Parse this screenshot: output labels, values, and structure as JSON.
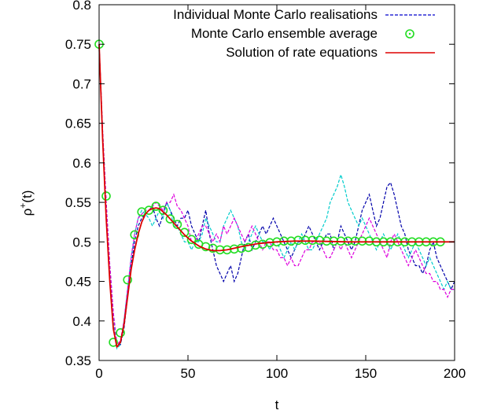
{
  "chart_data": {
    "type": "line",
    "xlabel": "t",
    "ylabel_base": "ρ",
    "ylabel_sup": "+",
    "ylabel_tail": "(t)",
    "xlim": [
      0,
      200
    ],
    "ylim": [
      0.35,
      0.8
    ],
    "xticks": [
      0,
      50,
      100,
      150,
      200
    ],
    "xtick_labels": [
      "0",
      "50",
      "100",
      "150",
      "200"
    ],
    "yticks": [
      0.35,
      0.4,
      0.45,
      0.5,
      0.55,
      0.6,
      0.65,
      0.7,
      0.75,
      0.8
    ],
    "ytick_labels": [
      "0.35",
      "0.4",
      "0.45",
      "0.5",
      "0.55",
      "0.6",
      "0.65",
      "0.7",
      "0.75",
      "0.8"
    ],
    "grid": false,
    "legend_position": "top-right",
    "legend": [
      {
        "label": "Individual Monte Carlo realisations",
        "style": "dashed",
        "color": "#0000cc"
      },
      {
        "label": "Monte Carlo ensemble average",
        "style": "circle",
        "color": "#22dd22"
      },
      {
        "label": "Solution of rate equations",
        "style": "solid",
        "color": "#dd0000"
      }
    ],
    "series": [
      {
        "label_ref": "Individual Monte Carlo realisations",
        "color": "#0000aa",
        "x": [
          0,
          2,
          4,
          6,
          8,
          10,
          12,
          14,
          16,
          18,
          20,
          22,
          24,
          26,
          28,
          30,
          32,
          34,
          36,
          38,
          40,
          42,
          44,
          46,
          48,
          50,
          52,
          54,
          56,
          58,
          60,
          62,
          64,
          66,
          68,
          70,
          72,
          74,
          76,
          78,
          80,
          82,
          84,
          86,
          88,
          90,
          92,
          94,
          96,
          98,
          100,
          102,
          104,
          106,
          108,
          110,
          112,
          114,
          116,
          118,
          120,
          122,
          124,
          126,
          128,
          130,
          132,
          134,
          136,
          138,
          140,
          142,
          144,
          146,
          148,
          150,
          152,
          154,
          156,
          158,
          160,
          162,
          164,
          166,
          168,
          170,
          172,
          174,
          176,
          178,
          180,
          182,
          184,
          186,
          188,
          190,
          192,
          194,
          196,
          198,
          200
        ],
        "y": [
          0.75,
          0.64,
          0.55,
          0.47,
          0.41,
          0.37,
          0.37,
          0.39,
          0.43,
          0.47,
          0.5,
          0.52,
          0.53,
          0.535,
          0.54,
          0.545,
          0.53,
          0.52,
          0.535,
          0.55,
          0.54,
          0.53,
          0.52,
          0.53,
          0.53,
          0.54,
          0.52,
          0.51,
          0.5,
          0.52,
          0.54,
          0.51,
          0.49,
          0.47,
          0.46,
          0.45,
          0.46,
          0.47,
          0.45,
          0.46,
          0.48,
          0.5,
          0.51,
          0.49,
          0.5,
          0.51,
          0.52,
          0.51,
          0.52,
          0.53,
          0.52,
          0.51,
          0.5,
          0.49,
          0.48,
          0.49,
          0.5,
          0.5,
          0.51,
          0.52,
          0.51,
          0.5,
          0.49,
          0.5,
          0.51,
          0.51,
          0.49,
          0.5,
          0.52,
          0.51,
          0.5,
          0.49,
          0.5,
          0.52,
          0.54,
          0.55,
          0.56,
          0.54,
          0.52,
          0.53,
          0.55,
          0.57,
          0.575,
          0.56,
          0.54,
          0.52,
          0.51,
          0.49,
          0.48,
          0.47,
          0.47,
          0.46,
          0.47,
          0.49,
          0.5,
          0.48,
          0.47,
          0.46,
          0.45,
          0.44,
          0.45
        ]
      },
      {
        "label_ref": "Individual Monte Carlo realisations",
        "color": "#00cccc",
        "x": [
          0,
          2,
          4,
          6,
          8,
          10,
          12,
          14,
          16,
          18,
          20,
          22,
          24,
          26,
          28,
          30,
          32,
          34,
          36,
          38,
          40,
          42,
          44,
          46,
          48,
          50,
          52,
          54,
          56,
          58,
          60,
          62,
          64,
          66,
          68,
          70,
          72,
          74,
          76,
          78,
          80,
          82,
          84,
          86,
          88,
          90,
          92,
          94,
          96,
          98,
          100,
          102,
          104,
          106,
          108,
          110,
          112,
          114,
          116,
          118,
          120,
          122,
          124,
          126,
          128,
          130,
          132,
          134,
          136,
          138,
          140,
          142,
          144,
          146,
          148,
          150,
          152,
          154,
          156,
          158,
          160,
          162,
          164,
          166,
          168,
          170,
          172,
          174,
          176,
          178,
          180,
          182,
          184,
          186,
          188,
          190,
          192,
          194,
          196,
          198,
          200
        ],
        "y": [
          0.75,
          0.63,
          0.54,
          0.46,
          0.4,
          0.365,
          0.37,
          0.4,
          0.44,
          0.48,
          0.51,
          0.53,
          0.54,
          0.535,
          0.53,
          0.52,
          0.53,
          0.54,
          0.53,
          0.55,
          0.54,
          0.52,
          0.52,
          0.51,
          0.5,
          0.5,
          0.49,
          0.5,
          0.5,
          0.51,
          0.53,
          0.52,
          0.51,
          0.5,
          0.5,
          0.52,
          0.53,
          0.54,
          0.53,
          0.52,
          0.5,
          0.49,
          0.5,
          0.51,
          0.52,
          0.51,
          0.5,
          0.5,
          0.49,
          0.5,
          0.5,
          0.49,
          0.48,
          0.49,
          0.5,
          0.49,
          0.5,
          0.51,
          0.5,
          0.49,
          0.49,
          0.5,
          0.51,
          0.52,
          0.53,
          0.55,
          0.56,
          0.57,
          0.585,
          0.57,
          0.55,
          0.54,
          0.53,
          0.52,
          0.53,
          0.52,
          0.51,
          0.5,
          0.49,
          0.5,
          0.51,
          0.5,
          0.49,
          0.5,
          0.51,
          0.5,
          0.49,
          0.48,
          0.49,
          0.5,
          0.49,
          0.48,
          0.47,
          0.48,
          0.47,
          0.46,
          0.45,
          0.44,
          0.45,
          0.44,
          0.44
        ]
      },
      {
        "label_ref": "Individual Monte Carlo realisations",
        "color": "#dd00dd",
        "x": [
          0,
          2,
          4,
          6,
          8,
          10,
          12,
          14,
          16,
          18,
          20,
          22,
          24,
          26,
          28,
          30,
          32,
          34,
          36,
          38,
          40,
          42,
          44,
          46,
          48,
          50,
          52,
          54,
          56,
          58,
          60,
          62,
          64,
          66,
          68,
          70,
          72,
          74,
          76,
          78,
          80,
          82,
          84,
          86,
          88,
          90,
          92,
          94,
          96,
          98,
          100,
          102,
          104,
          106,
          108,
          110,
          112,
          114,
          116,
          118,
          120,
          122,
          124,
          126,
          128,
          130,
          132,
          134,
          136,
          138,
          140,
          142,
          144,
          146,
          148,
          150,
          152,
          154,
          156,
          158,
          160,
          162,
          164,
          166,
          168,
          170,
          172,
          174,
          176,
          178,
          180,
          182,
          184,
          186,
          188,
          190,
          192,
          194,
          196,
          198,
          200
        ],
        "y": [
          0.75,
          0.64,
          0.55,
          0.47,
          0.41,
          0.37,
          0.375,
          0.4,
          0.44,
          0.48,
          0.51,
          0.53,
          0.535,
          0.54,
          0.54,
          0.545,
          0.55,
          0.545,
          0.54,
          0.55,
          0.55,
          0.56,
          0.545,
          0.54,
          0.53,
          0.52,
          0.5,
          0.5,
          0.51,
          0.52,
          0.52,
          0.51,
          0.5,
          0.51,
          0.5,
          0.52,
          0.51,
          0.52,
          0.53,
          0.52,
          0.51,
          0.5,
          0.51,
          0.52,
          0.51,
          0.5,
          0.49,
          0.5,
          0.5,
          0.49,
          0.49,
          0.48,
          0.48,
          0.47,
          0.48,
          0.47,
          0.47,
          0.48,
          0.49,
          0.49,
          0.5,
          0.5,
          0.5,
          0.49,
          0.48,
          0.48,
          0.49,
          0.5,
          0.49,
          0.5,
          0.49,
          0.48,
          0.49,
          0.5,
          0.51,
          0.52,
          0.53,
          0.52,
          0.51,
          0.5,
          0.49,
          0.48,
          0.5,
          0.51,
          0.5,
          0.49,
          0.48,
          0.47,
          0.48,
          0.49,
          0.48,
          0.47,
          0.46,
          0.46,
          0.45,
          0.45,
          0.44,
          0.44,
          0.43,
          0.44,
          0.44
        ]
      }
    ],
    "ensemble_average": {
      "label_ref": "Monte Carlo ensemble average",
      "color": "#22dd22",
      "x": [
        0,
        4,
        8,
        12,
        16,
        20,
        24,
        28,
        32,
        36,
        40,
        44,
        48,
        52,
        56,
        60,
        64,
        68,
        72,
        76,
        80,
        84,
        88,
        92,
        96,
        100,
        104,
        108,
        112,
        116,
        120,
        124,
        128,
        132,
        136,
        140,
        144,
        148,
        152,
        156,
        160,
        164,
        168,
        172,
        176,
        180,
        184,
        188,
        192
      ],
      "y": [
        0.75,
        0.558,
        0.373,
        0.385,
        0.452,
        0.509,
        0.538,
        0.54,
        0.545,
        0.54,
        0.529,
        0.522,
        0.512,
        0.503,
        0.497,
        0.494,
        0.492,
        0.49,
        0.49,
        0.491,
        0.492,
        0.493,
        0.496,
        0.497,
        0.499,
        0.5,
        0.501,
        0.501,
        0.502,
        0.502,
        0.502,
        0.502,
        0.501,
        0.501,
        0.501,
        0.501,
        0.501,
        0.501,
        0.501,
        0.5,
        0.5,
        0.5,
        0.5,
        0.5,
        0.5,
        0.5,
        0.5,
        0.5,
        0.5
      ]
    },
    "rate_solution": {
      "label_ref": "Solution of rate equations",
      "color": "#dd0000",
      "x": [
        0,
        2,
        4,
        6,
        8,
        10,
        12,
        14,
        16,
        18,
        20,
        22,
        24,
        26,
        28,
        30,
        32,
        34,
        36,
        38,
        40,
        44,
        48,
        52,
        56,
        60,
        64,
        68,
        72,
        76,
        80,
        90,
        100,
        110,
        120,
        140,
        160,
        180,
        200
      ],
      "y": [
        0.75,
        0.63,
        0.53,
        0.45,
        0.39,
        0.367,
        0.373,
        0.395,
        0.43,
        0.465,
        0.49,
        0.51,
        0.525,
        0.535,
        0.54,
        0.542,
        0.543,
        0.542,
        0.538,
        0.534,
        0.529,
        0.519,
        0.509,
        0.501,
        0.495,
        0.491,
        0.489,
        0.489,
        0.49,
        0.492,
        0.494,
        0.498,
        0.5,
        0.501,
        0.501,
        0.5,
        0.5,
        0.5,
        0.5
      ]
    }
  }
}
